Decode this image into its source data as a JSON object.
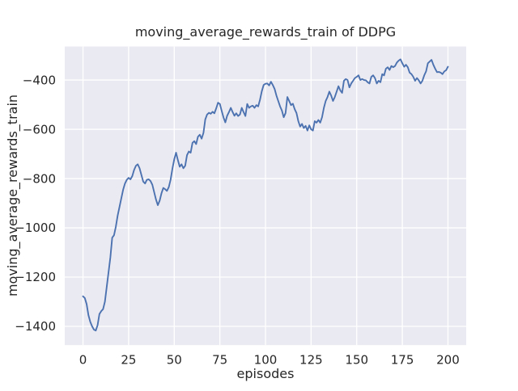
{
  "figure": {
    "background": "#ffffff"
  },
  "chart_data": {
    "type": "line",
    "title": "moving_average_rewards_train of DDPG",
    "xlabel": "episodes",
    "ylabel": "moving_average_rewards_train",
    "x_ticks": [
      0,
      25,
      50,
      75,
      100,
      125,
      150,
      175,
      200
    ],
    "y_ticks": [
      -400,
      -600,
      -800,
      -1000,
      -1200,
      -1400
    ],
    "xlim": [
      -10,
      210
    ],
    "ylim": [
      -1476,
      -264
    ],
    "grid": true,
    "legend": false,
    "colors": {
      "line": "#4c72b0",
      "plot_background": "#eaeaf2",
      "grid": "#ffffff",
      "text": "#262626"
    },
    "series": [
      {
        "name": "moving_average_rewards_train",
        "x": [
          0,
          1,
          2,
          3,
          4,
          5,
          6,
          7,
          8,
          9,
          10,
          11,
          12,
          13,
          14,
          15,
          16,
          17,
          18,
          19,
          20,
          21,
          22,
          23,
          24,
          25,
          26,
          27,
          28,
          29,
          30,
          31,
          32,
          33,
          34,
          35,
          36,
          37,
          38,
          39,
          40,
          41,
          42,
          43,
          44,
          45,
          46,
          47,
          48,
          49,
          50,
          51,
          52,
          53,
          54,
          55,
          56,
          57,
          58,
          59,
          60,
          61,
          62,
          63,
          64,
          65,
          66,
          67,
          68,
          69,
          70,
          71,
          72,
          73,
          74,
          75,
          76,
          77,
          78,
          79,
          80,
          81,
          82,
          83,
          84,
          85,
          86,
          87,
          88,
          89,
          90,
          91,
          92,
          93,
          94,
          95,
          96,
          97,
          98,
          99,
          100,
          101,
          102,
          103,
          104,
          105,
          106,
          107,
          108,
          109,
          110,
          111,
          112,
          113,
          114,
          115,
          116,
          117,
          118,
          119,
          120,
          121,
          122,
          123,
          124,
          125,
          126,
          127,
          128,
          129,
          130,
          131,
          132,
          133,
          134,
          135,
          136,
          137,
          138,
          139,
          140,
          141,
          142,
          143,
          144,
          145,
          146,
          147,
          148,
          149,
          150,
          151,
          152,
          153,
          154,
          155,
          156,
          157,
          158,
          159,
          160,
          161,
          162,
          163,
          164,
          165,
          166,
          167,
          168,
          169,
          170,
          171,
          172,
          173,
          174,
          175,
          176,
          177,
          178,
          179,
          180,
          181,
          182,
          183,
          184,
          185,
          186,
          187,
          188,
          189,
          190,
          191,
          192,
          193,
          194,
          195,
          196,
          197,
          198,
          199,
          200
        ],
        "y": [
          -1278,
          -1285,
          -1310,
          -1355,
          -1382,
          -1400,
          -1413,
          -1417,
          -1395,
          -1350,
          -1338,
          -1330,
          -1300,
          -1240,
          -1180,
          -1120,
          -1040,
          -1030,
          -995,
          -950,
          -915,
          -880,
          -845,
          -820,
          -805,
          -797,
          -803,
          -790,
          -765,
          -748,
          -742,
          -758,
          -785,
          -812,
          -820,
          -805,
          -803,
          -810,
          -825,
          -855,
          -885,
          -908,
          -890,
          -860,
          -838,
          -843,
          -850,
          -835,
          -805,
          -760,
          -722,
          -695,
          -725,
          -752,
          -742,
          -758,
          -748,
          -705,
          -690,
          -695,
          -655,
          -648,
          -660,
          -630,
          -622,
          -638,
          -615,
          -560,
          -540,
          -533,
          -537,
          -529,
          -535,
          -515,
          -492,
          -497,
          -525,
          -552,
          -572,
          -545,
          -530,
          -513,
          -530,
          -545,
          -535,
          -546,
          -540,
          -513,
          -530,
          -546,
          -497,
          -513,
          -507,
          -504,
          -513,
          -502,
          -507,
          -480,
          -445,
          -420,
          -415,
          -414,
          -422,
          -407,
          -420,
          -436,
          -463,
          -485,
          -507,
          -524,
          -551,
          -534,
          -469,
          -485,
          -502,
          -496,
          -518,
          -534,
          -567,
          -589,
          -578,
          -595,
          -586,
          -605,
          -584,
          -600,
          -605,
          -567,
          -573,
          -562,
          -573,
          -551,
          -513,
          -485,
          -469,
          -447,
          -463,
          -485,
          -469,
          -447,
          -425,
          -442,
          -452,
          -403,
          -396,
          -400,
          -430,
          -414,
          -403,
          -392,
          -387,
          -381,
          -400,
          -396,
          -400,
          -401,
          -409,
          -414,
          -387,
          -381,
          -392,
          -414,
          -403,
          -409,
          -376,
          -381,
          -354,
          -348,
          -359,
          -343,
          -348,
          -343,
          -329,
          -321,
          -316,
          -332,
          -346,
          -338,
          -348,
          -370,
          -376,
          -387,
          -403,
          -392,
          -401,
          -414,
          -403,
          -381,
          -365,
          -332,
          -325,
          -318,
          -338,
          -354,
          -368,
          -367,
          -370,
          -376,
          -365,
          -360,
          -346
        ]
      }
    ]
  }
}
